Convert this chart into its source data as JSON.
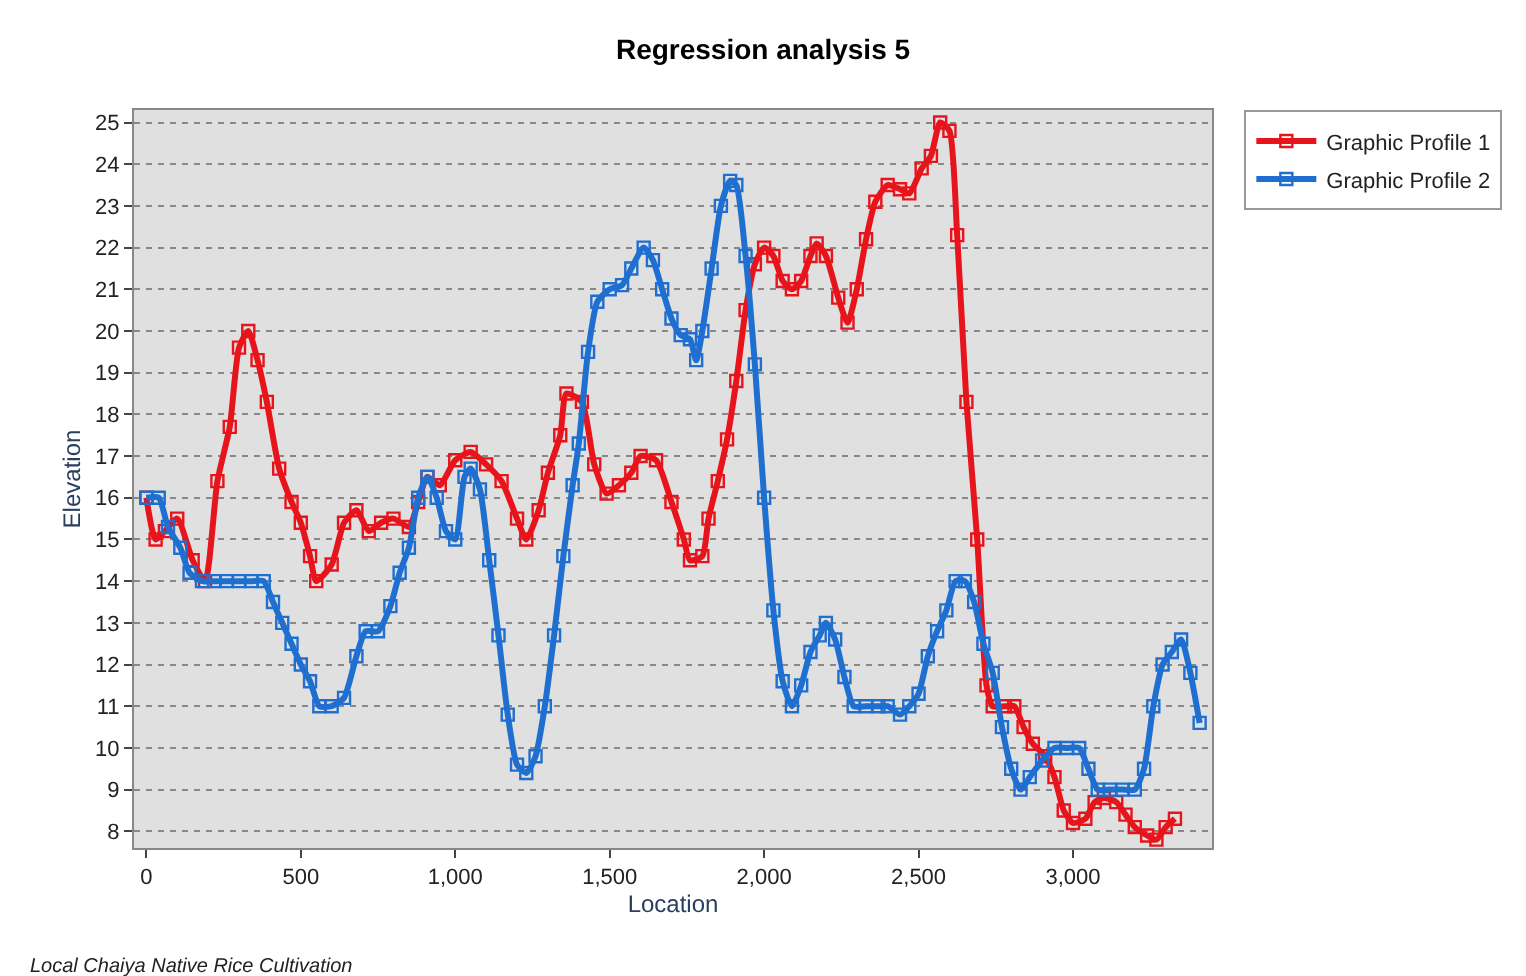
{
  "chart_data": {
    "type": "line",
    "title": "Regression analysis 5",
    "xlabel": "Location",
    "ylabel": "Elevation",
    "annotations": [
      "Local Chaiya Native Rice Cultivation"
    ],
    "xlim": [
      -40,
      3450
    ],
    "xticks": [
      0,
      500,
      {
        "value": 1000,
        "label": "1,000"
      },
      {
        "value": 1500,
        "label": "1,500"
      },
      {
        "value": 2000,
        "label": "2,000"
      },
      {
        "value": 2500,
        "label": "2,500"
      },
      {
        "value": 3000,
        "label": "3,000"
      }
    ],
    "ylim": [
      7.6,
      25.3
    ],
    "yticks": [
      8,
      9,
      10,
      11,
      12,
      13,
      14,
      15,
      16,
      17,
      18,
      19,
      20,
      21,
      22,
      23,
      24,
      25
    ],
    "grid": "y",
    "legend": "top right",
    "marker": "square",
    "line_style": "solid",
    "series": [
      {
        "name": "Graphic Profile 1",
        "color": "#e8141b",
        "x": [
          0,
          30,
          60,
          100,
          150,
          190,
          230,
          270,
          300,
          330,
          360,
          390,
          430,
          470,
          500,
          530,
          550,
          600,
          640,
          680,
          720,
          760,
          800,
          850,
          880,
          910,
          950,
          1000,
          1050,
          1100,
          1150,
          1200,
          1230,
          1270,
          1300,
          1340,
          1360,
          1410,
          1450,
          1490,
          1530,
          1570,
          1600,
          1650,
          1700,
          1740,
          1760,
          1800,
          1820,
          1850,
          1880,
          1910,
          1940,
          1970,
          2000,
          2030,
          2060,
          2090,
          2120,
          2150,
          2170,
          2200,
          2240,
          2270,
          2300,
          2330,
          2360,
          2400,
          2440,
          2470,
          2510,
          2540,
          2570,
          2600,
          2625,
          2655,
          2690,
          2720,
          2740,
          2780,
          2810,
          2840,
          2870,
          2910,
          2940,
          2970,
          3000,
          3040,
          3070,
          3100,
          3140,
          3170,
          3200,
          3240,
          3270,
          3300,
          3330
        ],
        "values": [
          16,
          15,
          15.2,
          15.5,
          14.5,
          14,
          16.4,
          17.7,
          19.6,
          20,
          19.3,
          18.3,
          16.7,
          15.9,
          15.4,
          14.6,
          14,
          14.4,
          15.4,
          15.7,
          15.2,
          15.4,
          15.5,
          15.3,
          15.9,
          16.5,
          16.3,
          16.9,
          17.1,
          16.8,
          16.4,
          15.5,
          15,
          15.7,
          16.6,
          17.5,
          18.5,
          18.3,
          16.8,
          16.1,
          16.3,
          16.6,
          17,
          16.9,
          15.9,
          15,
          14.5,
          14.6,
          15.5,
          16.4,
          17.4,
          18.8,
          20.5,
          21.6,
          22,
          21.8,
          21.2,
          21,
          21.2,
          21.8,
          22.1,
          21.8,
          20.8,
          20.2,
          21,
          22.2,
          23.1,
          23.5,
          23.4,
          23.3,
          23.9,
          24.2,
          25,
          24.8,
          22.3,
          18.3,
          15,
          11.5,
          11,
          11,
          11,
          10.5,
          10.1,
          9.8,
          9.3,
          8.5,
          8.2,
          8.3,
          8.7,
          8.8,
          8.7,
          8.4,
          8.1,
          7.9,
          7.8,
          8.1,
          8.3
        ]
      },
      {
        "name": "Graphic Profile 2",
        "color": "#1f6fd0",
        "x": [
          0,
          40,
          70,
          110,
          140,
          180,
          220,
          260,
          300,
          340,
          380,
          410,
          440,
          470,
          500,
          530,
          560,
          600,
          640,
          680,
          710,
          750,
          790,
          820,
          850,
          880,
          910,
          940,
          970,
          1000,
          1030,
          1050,
          1080,
          1110,
          1140,
          1170,
          1200,
          1230,
          1260,
          1290,
          1320,
          1350,
          1380,
          1400,
          1430,
          1460,
          1500,
          1540,
          1570,
          1610,
          1640,
          1670,
          1700,
          1730,
          1760,
          1780,
          1800,
          1830,
          1860,
          1890,
          1910,
          1940,
          1970,
          2000,
          2030,
          2060,
          2090,
          2120,
          2150,
          2180,
          2200,
          2230,
          2260,
          2290,
          2330,
          2370,
          2400,
          2440,
          2470,
          2500,
          2530,
          2560,
          2590,
          2620,
          2650,
          2680,
          2710,
          2740,
          2770,
          2800,
          2830,
          2860,
          2900,
          2940,
          2980,
          3020,
          3050,
          3080,
          3120,
          3160,
          3200,
          3230,
          3260,
          3290,
          3320,
          3350,
          3380,
          3410
        ],
        "values": [
          16,
          16,
          15.3,
          14.8,
          14.2,
          14,
          14,
          14,
          14,
          14,
          14,
          13.5,
          13,
          12.5,
          12,
          11.6,
          11,
          11,
          11.2,
          12.2,
          12.8,
          12.8,
          13.4,
          14.2,
          14.8,
          16,
          16.5,
          16,
          15.2,
          15,
          16.5,
          16.7,
          16.2,
          14.5,
          12.7,
          10.8,
          9.6,
          9.4,
          9.8,
          11,
          12.7,
          14.6,
          16.3,
          17.3,
          19.5,
          20.7,
          21,
          21.1,
          21.5,
          22,
          21.7,
          21,
          20.3,
          19.9,
          19.8,
          19.3,
          20,
          21.5,
          23,
          23.6,
          23.5,
          21.8,
          19.2,
          16,
          13.3,
          11.6,
          11,
          11.5,
          12.3,
          12.7,
          13,
          12.6,
          11.7,
          11,
          11,
          11,
          11,
          10.8,
          11,
          11.3,
          12.2,
          12.8,
          13.3,
          14,
          14,
          13.5,
          12.5,
          11.8,
          10.5,
          9.5,
          9,
          9.3,
          9.7,
          10,
          10,
          10,
          9.5,
          9,
          9,
          9,
          9,
          9.5,
          11,
          12,
          12.3,
          12.6,
          11.8,
          10.6
        ]
      }
    ]
  }
}
